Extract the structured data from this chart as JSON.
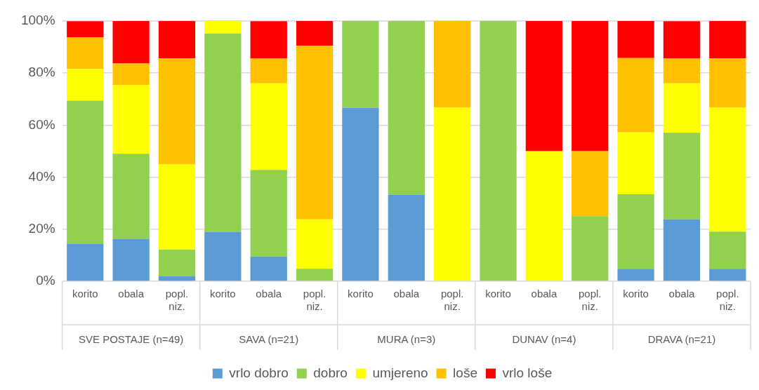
{
  "chart_data": {
    "type": "bar",
    "stacked": true,
    "categories": [
      "korito",
      "obala",
      "popl. niz.",
      "korito",
      "obala",
      "popl. niz.",
      "korito",
      "obala",
      "popl. niz.",
      "korito",
      "obala",
      "popl. niz.",
      "korito",
      "obala",
      "popl. niz."
    ],
    "annotations": [
      "SVE POSTAJE (n=49)",
      "SAVA (n=21)",
      "MURA (n=3)",
      "DUNAV (n=4)",
      "DRAVA (n=21)"
    ],
    "series": [
      {
        "name": "vrlo dobro",
        "color": "#5b9bd5",
        "values": [
          14.3,
          16.3,
          2.0,
          19.0,
          9.5,
          0,
          66.7,
          33.3,
          0,
          0,
          0,
          0,
          4.8,
          23.8,
          4.8
        ]
      },
      {
        "name": "dobro",
        "color": "#92d050",
        "values": [
          55.1,
          32.7,
          10.2,
          76.2,
          33.3,
          4.8,
          33.3,
          66.7,
          0,
          100,
          0,
          25,
          28.6,
          33.3,
          14.3
        ]
      },
      {
        "name": "umjereno",
        "color": "#ffff00",
        "values": [
          12.2,
          26.5,
          32.7,
          4.8,
          33.3,
          19.0,
          0,
          0,
          66.7,
          0,
          50,
          0,
          23.8,
          19.0,
          47.6
        ]
      },
      {
        "name": "loše",
        "color": "#ffc000",
        "values": [
          12.2,
          8.2,
          40.8,
          0,
          9.5,
          66.7,
          0,
          0,
          33.3,
          0,
          0,
          25,
          28.6,
          9.5,
          19.0
        ]
      },
      {
        "name": "vrlo loše",
        "color": "#ff0000",
        "values": [
          6.1,
          16.3,
          14.3,
          0,
          14.3,
          9.5,
          0,
          0,
          0,
          0,
          50,
          50,
          14.3,
          14.3,
          14.3
        ]
      }
    ],
    "ylim": [
      0,
      100
    ],
    "yticks": [
      {
        "value": 0,
        "label": "0%"
      },
      {
        "value": 20,
        "label": "20%"
      },
      {
        "value": 40,
        "label": "40%"
      },
      {
        "value": 60,
        "label": "60%"
      },
      {
        "value": 80,
        "label": "80%"
      },
      {
        "value": 100,
        "label": "100%"
      }
    ],
    "grid": "y",
    "legend": "bottom"
  }
}
